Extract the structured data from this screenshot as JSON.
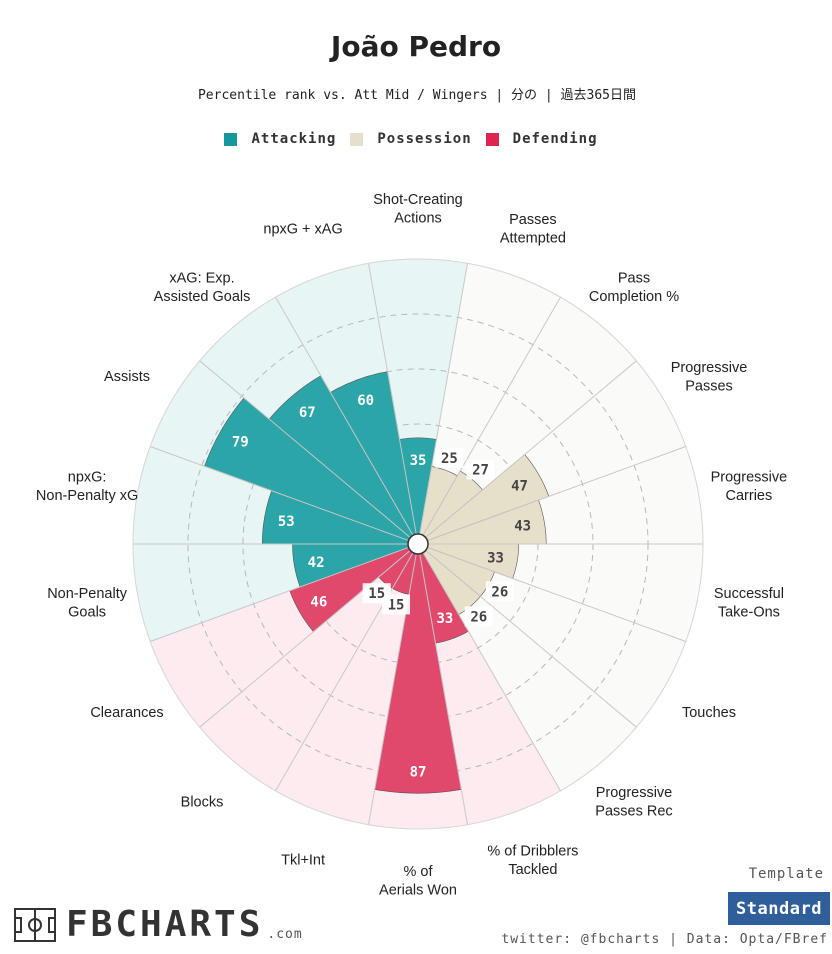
{
  "title": "João Pedro",
  "subtitle": "Percentile rank vs. Att Mid / Wingers | 分の | 過去365日間",
  "legend": [
    {
      "label": "Attacking",
      "color": "#13999b"
    },
    {
      "label": "Possession",
      "color": "#e6e0cb"
    },
    {
      "label": "Defending",
      "color": "#dc2651"
    }
  ],
  "template": {
    "label": "Template",
    "value": "Standard"
  },
  "logo": {
    "text": "FBCHARTS",
    "suffix": ".com"
  },
  "credits": "twitter: @fbcharts | Data: Opta/FBref",
  "chart_data": {
    "type": "polar-bar",
    "title": "João Pedro",
    "rlim": [
      0,
      100
    ],
    "grid_levels": [
      20,
      40,
      60,
      80
    ],
    "categories": [
      {
        "label": "Shot-Creating Actions",
        "value": 35,
        "group": "Attacking"
      },
      {
        "label": "Passes Attempted",
        "value": 25,
        "group": "Possession"
      },
      {
        "label": "Pass Completion %",
        "value": 27,
        "group": "Possession"
      },
      {
        "label": "Progressive Passes",
        "value": 47,
        "group": "Possession"
      },
      {
        "label": "Progressive Carries",
        "value": 43,
        "group": "Possession"
      },
      {
        "label": "Successful Take-Ons",
        "value": 33,
        "group": "Possession"
      },
      {
        "label": "Touches",
        "value": 26,
        "group": "Possession"
      },
      {
        "label": "Progressive Passes Rec",
        "value": 26,
        "group": "Possession"
      },
      {
        "label": "% of Dribblers Tackled",
        "value": 33,
        "group": "Defending"
      },
      {
        "label": "% of Aerials Won",
        "value": 87,
        "group": "Defending"
      },
      {
        "label": "Tkl+Int",
        "value": 15,
        "group": "Defending"
      },
      {
        "label": "Blocks",
        "value": 15,
        "group": "Defending"
      },
      {
        "label": "Clearances",
        "value": 46,
        "group": "Defending"
      },
      {
        "label": "Non-Penalty Goals",
        "value": 42,
        "group": "Attacking"
      },
      {
        "label": "npxG: Non-Penalty xG",
        "value": 53,
        "group": "Attacking"
      },
      {
        "label": "Assists",
        "value": 79,
        "group": "Attacking"
      },
      {
        "label": "xAG: Exp. Assisted Goals",
        "value": 67,
        "group": "Attacking"
      },
      {
        "label": "npxG + xAG",
        "value": 60,
        "group": "Attacking"
      }
    ],
    "group_colors": {
      "Attacking": {
        "bar": "#2ba5a8",
        "bg": "#e8f5f5",
        "label": "#ffffff"
      },
      "Possession": {
        "bar": "#e6e0cb",
        "bg": "#fafaf8",
        "label": "#444444"
      },
      "Defending": {
        "bar": "#e0486c",
        "bg": "#fdebef",
        "label": "#ffffff"
      }
    }
  }
}
